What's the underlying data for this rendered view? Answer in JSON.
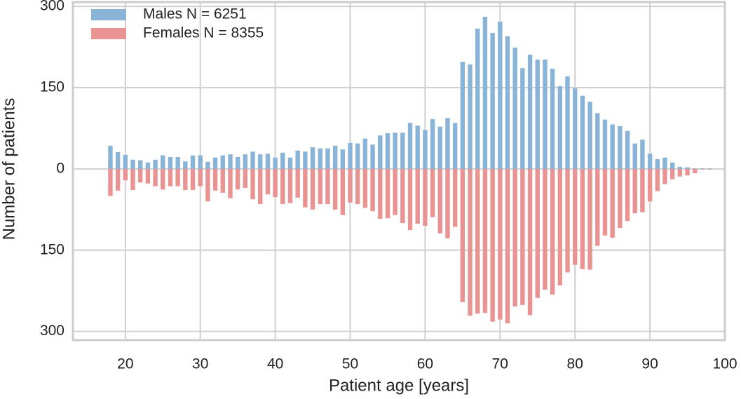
{
  "chart_data": {
    "type": "bar",
    "x_label": "Patient age [years]",
    "y_label": "Number of patients",
    "x": [
      18,
      19,
      20,
      21,
      22,
      23,
      24,
      25,
      26,
      27,
      28,
      29,
      30,
      31,
      32,
      33,
      34,
      35,
      36,
      37,
      38,
      39,
      40,
      41,
      42,
      43,
      44,
      45,
      46,
      47,
      48,
      49,
      50,
      51,
      52,
      53,
      54,
      55,
      56,
      57,
      58,
      59,
      60,
      61,
      62,
      63,
      64,
      65,
      66,
      67,
      68,
      69,
      70,
      71,
      72,
      73,
      74,
      75,
      76,
      77,
      78,
      79,
      80,
      81,
      82,
      83,
      84,
      85,
      86,
      87,
      88,
      89,
      90,
      91,
      92,
      93,
      94,
      95,
      96,
      97,
      98
    ],
    "series": [
      {
        "name": "Males N = 6251",
        "color": "#8ab4d7",
        "values": [
          43,
          31,
          26,
          17,
          16,
          12,
          17,
          25,
          22,
          22,
          14,
          25,
          25,
          13,
          21,
          25,
          27,
          22,
          27,
          32,
          27,
          28,
          21,
          30,
          21,
          34,
          32,
          40,
          38,
          38,
          43,
          36,
          48,
          47,
          56,
          45,
          62,
          66,
          67,
          67,
          85,
          80,
          72,
          92,
          78,
          94,
          85,
          198,
          193,
          259,
          281,
          251,
          272,
          245,
          224,
          186,
          211,
          202,
          202,
          185,
          153,
          171,
          149,
          135,
          124,
          103,
          91,
          82,
          79,
          70,
          47,
          54,
          28,
          18,
          21,
          12,
          4,
          3,
          1,
          1,
          1
        ]
      },
      {
        "name": "Females N = 8355",
        "color": "#e99393",
        "values": [
          -50,
          -40,
          -21,
          -39,
          -25,
          -27,
          -32,
          -38,
          -32,
          -32,
          -39,
          -39,
          -32,
          -60,
          -40,
          -44,
          -54,
          -38,
          -35,
          -56,
          -65,
          -47,
          -52,
          -65,
          -63,
          -53,
          -71,
          -75,
          -65,
          -65,
          -75,
          -85,
          -62,
          -65,
          -72,
          -78,
          -92,
          -91,
          -85,
          -100,
          -113,
          -101,
          -105,
          -89,
          -119,
          -128,
          -107,
          -246,
          -271,
          -267,
          -266,
          -282,
          -278,
          -285,
          -254,
          -251,
          -270,
          -238,
          -223,
          -232,
          -215,
          -191,
          -177,
          -185,
          -186,
          -142,
          -123,
          -127,
          -109,
          -96,
          -82,
          -80,
          -60,
          -41,
          -28,
          -19,
          -14,
          -12,
          -8,
          -1,
          -1
        ]
      }
    ],
    "xlim": [
      13,
      100
    ],
    "xticks": [
      20,
      30,
      40,
      50,
      60,
      70,
      80,
      90,
      100
    ],
    "ylim": [
      -316,
      308
    ],
    "yticks": [
      {
        "value": -300,
        "label": "300"
      },
      {
        "value": -150,
        "label": "150"
      },
      0,
      150,
      300
    ],
    "grid": true,
    "legend": "upper left"
  }
}
